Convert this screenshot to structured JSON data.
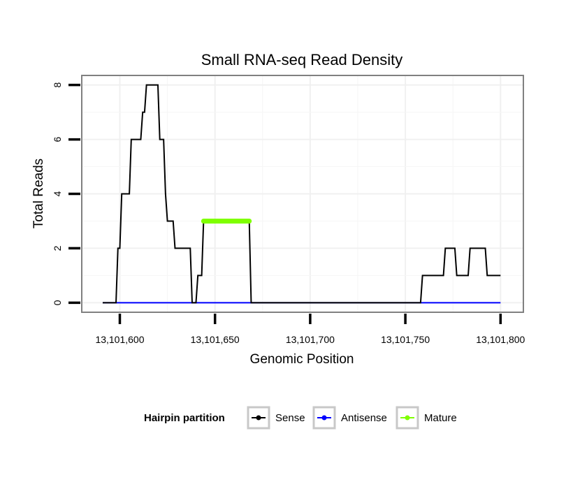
{
  "chart_data": {
    "type": "line",
    "title": "Small RNA-seq Read Density",
    "xlabel": "Genomic Position",
    "ylabel": "Total Reads",
    "xlim": [
      13101580,
      13101812
    ],
    "ylim": [
      -0.35,
      8.35
    ],
    "x_ticks": [
      13101600,
      13101650,
      13101700,
      13101750,
      13101800
    ],
    "x_tick_labels": [
      "13,101,600",
      "13,101,650",
      "13,101,700",
      "13,101,750",
      "13,101,800"
    ],
    "y_ticks": [
      0,
      2,
      4,
      6,
      8
    ],
    "y_tick_labels": [
      "0",
      "2",
      "4",
      "6",
      "8"
    ],
    "grid": true,
    "legend": {
      "title": "Hairpin partition",
      "placement": "bottom",
      "entries": [
        "Sense",
        "Antisense",
        "Mature"
      ]
    },
    "series": [
      {
        "name": "Sense",
        "color": "#000000",
        "x": [
          13101591,
          13101598,
          13101599,
          13101600,
          13101601,
          13101602,
          13101603,
          13101605,
          13101606,
          13101611,
          13101612,
          13101613,
          13101614,
          13101616,
          13101617,
          13101620,
          13101621,
          13101623,
          13101624,
          13101625,
          13101626,
          13101628,
          13101629,
          13101637,
          13101638,
          13101640,
          13101641,
          13101643,
          13101644,
          13101668,
          13101669,
          13101758,
          13101759,
          13101770,
          13101771,
          13101776,
          13101777,
          13101783,
          13101784,
          13101792,
          13101793,
          13101800
        ],
        "values": [
          0,
          0,
          2,
          2,
          4,
          4,
          4,
          4,
          6,
          6,
          7,
          7,
          8,
          8,
          8,
          8,
          6,
          6,
          4,
          3,
          3,
          3,
          2,
          2,
          0,
          0,
          1,
          1,
          3,
          3,
          0,
          0,
          1,
          1,
          2,
          2,
          1,
          1,
          2,
          2,
          1,
          1
        ]
      },
      {
        "name": "Antisense",
        "color": "#0000ff",
        "x": [
          13101591,
          13101800
        ],
        "values": [
          0,
          0
        ]
      },
      {
        "name": "Mature",
        "color": "#7fff00",
        "x": [
          13101644,
          13101668
        ],
        "values": [
          3,
          3
        ]
      }
    ]
  }
}
